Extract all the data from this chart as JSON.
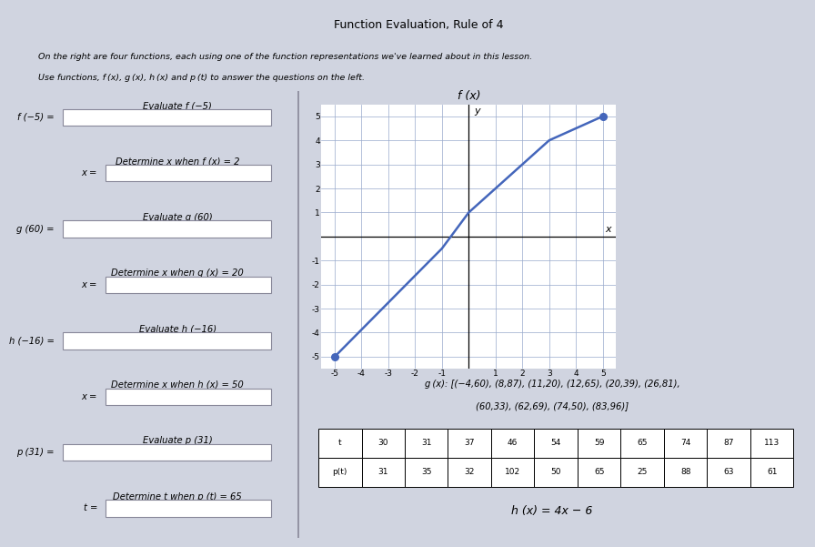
{
  "title": "Function Evaluation, Rule of 4",
  "header_line1": "On the right are four functions, each using one of the function representations we've learned about in this lesson.",
  "header_line2": "Use functions, f (x), g (x), h (x) and p (t) to answer the questions on the left.",
  "left_questions": [
    {
      "label": "Evaluate f (−5)",
      "eq": "f (−5) =",
      "indent": false
    },
    {
      "label": "Determine x when f (x) = 2",
      "eq": "x =",
      "indent": true
    },
    {
      "label": "Evaluate g (60)",
      "eq": "g (60) =",
      "indent": false
    },
    {
      "label": "Determine x when g (x) = 20",
      "eq": "x =",
      "indent": true
    },
    {
      "label": "Evaluate h (−16)",
      "eq": "h (−16) =",
      "indent": false
    },
    {
      "label": "Determine x when h (x) = 50",
      "eq": "x =",
      "indent": true
    },
    {
      "label": "Evaluate p (31)",
      "eq": "p (31) =",
      "indent": false
    },
    {
      "label": "Determine t when p (t) = 65",
      "eq": "t =",
      "indent": true
    }
  ],
  "graph_title": "f (x)",
  "graph_points": [
    [
      -5,
      -5
    ],
    [
      -1,
      -0.5
    ],
    [
      0,
      1
    ],
    [
      3,
      4
    ],
    [
      5,
      5
    ]
  ],
  "graph_xlim": [
    -5.3,
    5.3
  ],
  "graph_ylim": [
    -5.3,
    5.3
  ],
  "graph_color": "#4466bb",
  "graph_dot_points": [
    [
      -5,
      -5
    ],
    [
      5,
      5
    ]
  ],
  "g_text_line1": "g (x): [(−4,60), (8,87), (11,20), (12,65), (20,39), (26,81),",
  "g_text_line2": "(60,33), (62,69), (74,50), (83,96)]",
  "p_table_t": [
    30,
    31,
    37,
    46,
    54,
    59,
    65,
    74,
    87,
    113
  ],
  "p_table_pt": [
    31,
    35,
    32,
    102,
    50,
    65,
    25,
    88,
    63,
    61
  ],
  "h_formula": "h (x) = 4x − 6",
  "outer_bg": "#d0d4e0",
  "inner_bg": "#e8eaf2",
  "box_fill": "white",
  "box_edge": "#888899",
  "divider_color": "#888899",
  "text_color": "black",
  "grid_color": "#99aacc",
  "axis_color": "black"
}
